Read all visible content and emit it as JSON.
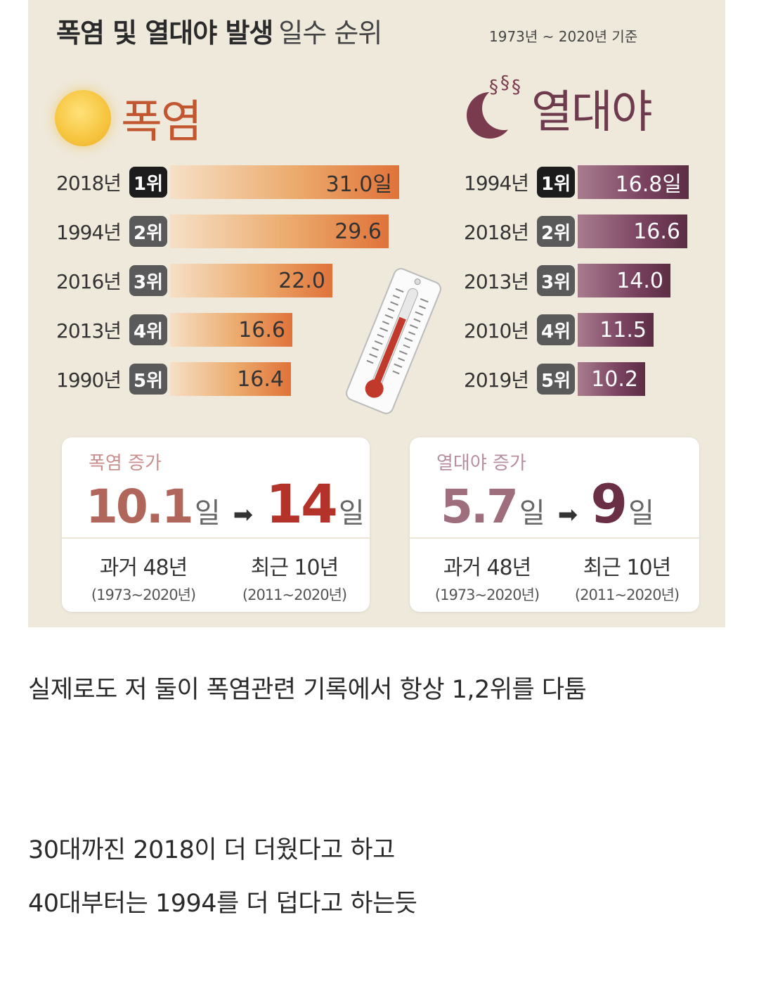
{
  "infographic": {
    "title_bold": "폭염 및 열대야 발생",
    "title_rest": "일수 순위",
    "period": "1973년 ~ 2020년 기준",
    "heatwave": {
      "label": "폭염",
      "ranks": [
        {
          "year": "2018년",
          "rank": "1위",
          "value": "31.0일",
          "days": 31.0
        },
        {
          "year": "1994년",
          "rank": "2위",
          "value": "29.6",
          "days": 29.6
        },
        {
          "year": "2016년",
          "rank": "3위",
          "value": "22.0",
          "days": 22.0
        },
        {
          "year": "2013년",
          "rank": "4위",
          "value": "16.6",
          "days": 16.6
        },
        {
          "year": "1990년",
          "rank": "5위",
          "value": "16.4",
          "days": 16.4
        }
      ],
      "increase": {
        "title": "폭염 증가",
        "past_value": "10.1",
        "past_unit": "일",
        "recent_value": "14",
        "recent_unit": "일",
        "arrow": "➡",
        "past_label": "과거 48년",
        "past_range": "(1973~2020년)",
        "recent_label": "최근 10년",
        "recent_range": "(2011~2020년)"
      }
    },
    "tropical_night": {
      "label": "열대야",
      "ranks": [
        {
          "year": "1994년",
          "rank": "1위",
          "value": "16.8일",
          "days": 16.8
        },
        {
          "year": "2018년",
          "rank": "2위",
          "value": "16.6",
          "days": 16.6
        },
        {
          "year": "2013년",
          "rank": "3위",
          "value": "14.0",
          "days": 14.0
        },
        {
          "year": "2010년",
          "rank": "4위",
          "value": "11.5",
          "days": 11.5
        },
        {
          "year": "2019년",
          "rank": "5위",
          "value": "10.2",
          "days": 10.2
        }
      ],
      "increase": {
        "title": "열대야 증가",
        "past_value": "5.7",
        "past_unit": "일",
        "recent_value": "9",
        "recent_unit": "일",
        "arrow": "➡",
        "past_label": "과거 48년",
        "past_range": "(1973~2020년)",
        "recent_label": "최근 10년",
        "recent_range": "(2011~2020년)"
      }
    },
    "colors": {
      "heat_accent": "#c2572f",
      "night_accent": "#6e3a4e",
      "background": "#efe9dc"
    }
  },
  "post": {
    "line1": "실제로도 저 둘이 폭염관련 기록에서 항상 1,2위를 다툼",
    "line2": "30대까진 2018이 더 더웠다고 하고",
    "line3": "40대부터는 1994를 더 덥다고 하는듯"
  }
}
